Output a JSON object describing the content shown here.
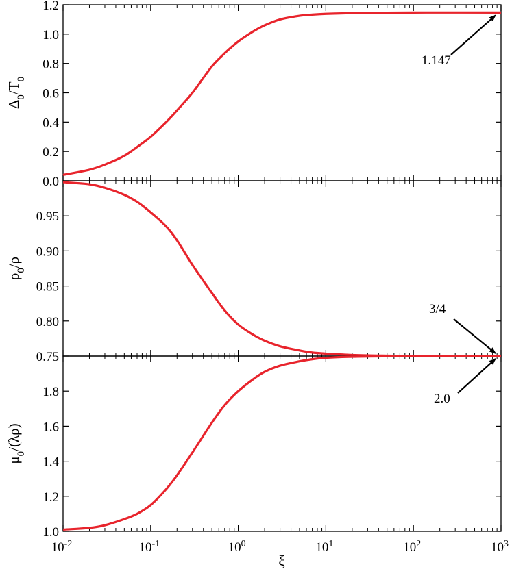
{
  "chart_data": {
    "type": "line",
    "shared_x": {
      "label": "ξ",
      "scale": "log",
      "range": [
        0.01,
        1000
      ],
      "ticks": [
        {
          "base": "10",
          "exp": "-2"
        },
        {
          "base": "10",
          "exp": "-1"
        },
        {
          "base": "10",
          "exp": "0"
        },
        {
          "base": "10",
          "exp": "1"
        },
        {
          "base": "10",
          "exp": "2"
        },
        {
          "base": "10",
          "exp": "3"
        }
      ]
    },
    "line_color": "#e8242c",
    "panels": [
      {
        "ylabel": {
          "main": "Δ",
          "sub": "0",
          "rest": "/T",
          "sub2": "0"
        },
        "ylim": [
          0.0,
          1.2
        ],
        "yticks": [
          "0.0",
          "0.2",
          "0.4",
          "0.6",
          "0.8",
          "1.0",
          "1.2"
        ],
        "series": {
          "x": [
            0.01,
            0.02,
            0.03,
            0.05,
            0.07,
            0.1,
            0.15,
            0.2,
            0.3,
            0.5,
            0.7,
            1.0,
            1.5,
            2,
            3,
            5,
            7,
            10,
            20,
            50,
            100,
            1000
          ],
          "y": [
            0.04,
            0.075,
            0.11,
            0.17,
            0.23,
            0.3,
            0.4,
            0.48,
            0.6,
            0.78,
            0.87,
            0.95,
            1.02,
            1.06,
            1.1,
            1.125,
            1.133,
            1.138,
            1.143,
            1.146,
            1.147,
            1.147
          ]
        },
        "annotation": {
          "text": "1.147",
          "x": 1000,
          "y": 1.147
        }
      },
      {
        "ylabel": {
          "main": "ρ",
          "sub": "0",
          "rest": "/ρ"
        },
        "ylim": [
          0.75,
          1.0
        ],
        "yticks": [
          "0.75",
          "0.80",
          "0.85",
          "0.90",
          "0.95"
        ],
        "series": {
          "x": [
            0.01,
            0.02,
            0.03,
            0.05,
            0.07,
            0.1,
            0.15,
            0.2,
            0.3,
            0.5,
            0.7,
            1.0,
            1.5,
            2,
            3,
            5,
            7,
            10,
            20,
            50,
            100,
            1000
          ],
          "y": [
            0.998,
            0.995,
            0.99,
            0.98,
            0.97,
            0.955,
            0.935,
            0.915,
            0.88,
            0.84,
            0.815,
            0.795,
            0.78,
            0.772,
            0.764,
            0.758,
            0.755,
            0.7535,
            0.7515,
            0.7505,
            0.7502,
            0.75
          ]
        },
        "annotation": {
          "text": "3/4",
          "x": 1000,
          "y": 0.75
        }
      },
      {
        "ylabel": {
          "main": "μ",
          "sub": "0",
          "rest": "/(λρ)"
        },
        "ylim": [
          1.0,
          2.0
        ],
        "yticks": [
          "1.0",
          "1.2",
          "1.4",
          "1.6",
          "1.8"
        ],
        "series": {
          "x": [
            0.01,
            0.02,
            0.03,
            0.05,
            0.07,
            0.1,
            0.15,
            0.2,
            0.3,
            0.5,
            0.7,
            1.0,
            1.5,
            2,
            3,
            5,
            7,
            10,
            20,
            50,
            100,
            1000
          ],
          "y": [
            1.01,
            1.02,
            1.035,
            1.07,
            1.1,
            1.15,
            1.24,
            1.32,
            1.45,
            1.62,
            1.72,
            1.8,
            1.87,
            1.91,
            1.945,
            1.97,
            1.982,
            1.99,
            1.996,
            1.999,
            2.0,
            2.0
          ]
        },
        "annotation": {
          "text": "2.0",
          "x": 1000,
          "y": 2.0
        }
      }
    ]
  }
}
